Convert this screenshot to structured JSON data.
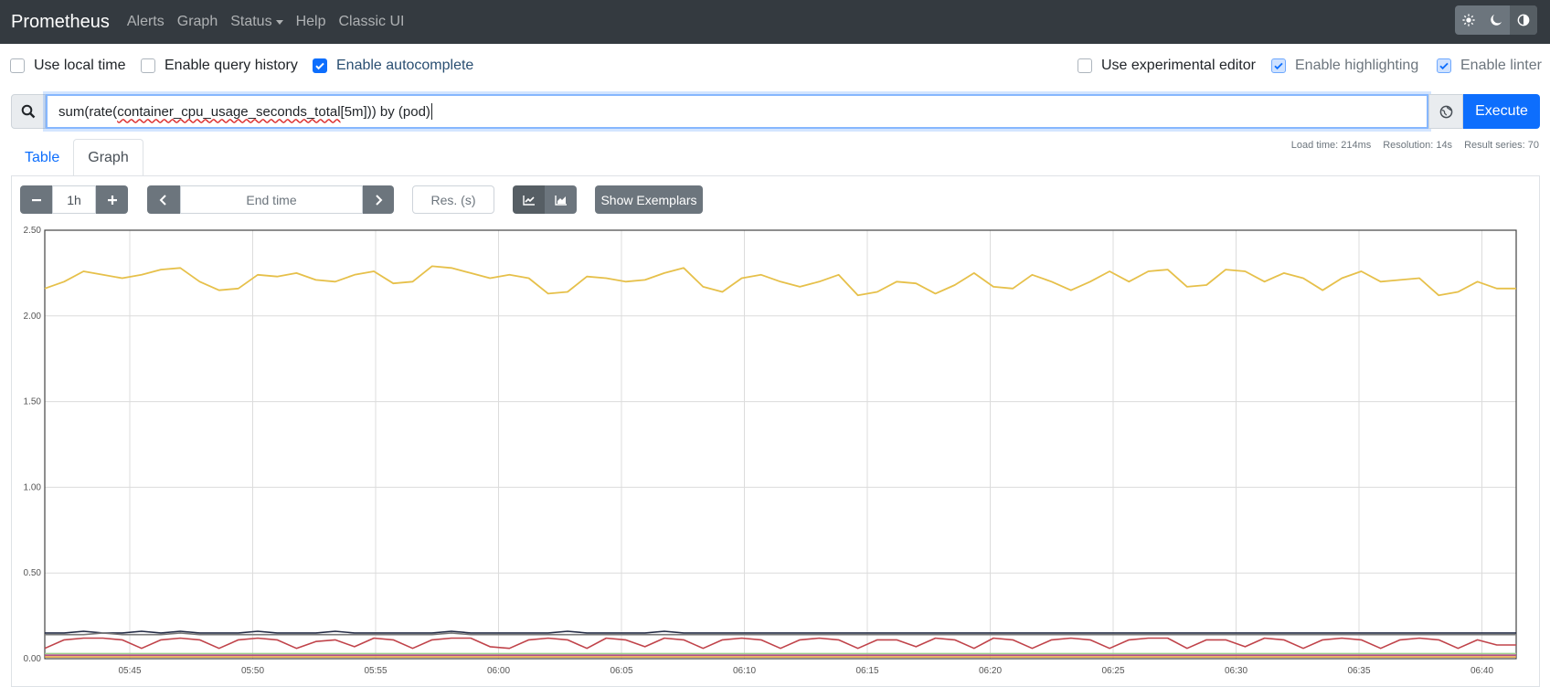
{
  "navbar": {
    "brand": "Prometheus",
    "links": [
      "Alerts",
      "Graph",
      "Status",
      "Help",
      "Classic UI"
    ],
    "theme_icons": [
      "sun-icon",
      "moon-icon",
      "contrast-icon"
    ]
  },
  "options": {
    "use_local_time": {
      "label": "Use local time",
      "checked": false
    },
    "enable_query_history": {
      "label": "Enable query history",
      "checked": false
    },
    "enable_autocomplete": {
      "label": "Enable autocomplete",
      "checked": true
    },
    "use_experimental_editor": {
      "label": "Use experimental editor",
      "checked": false
    },
    "enable_highlighting": {
      "label": "Enable highlighting",
      "checked": true
    },
    "enable_linter": {
      "label": "Enable linter",
      "checked": true
    }
  },
  "query": {
    "prefix": "sum(rate(",
    "metric": "container_cpu_usage_seconds_total",
    "suffix": "[5m])) by (pod)",
    "execute_label": "Execute"
  },
  "tabs": {
    "table": "Table",
    "graph": "Graph"
  },
  "stats": {
    "load_time": "Load time: 214ms",
    "resolution": "Resolution: 14s",
    "result_series": "Result series: 70"
  },
  "controls": {
    "range": "1h",
    "end_time_placeholder": "End time",
    "resolution_placeholder": "Res. (s)",
    "show_exemplars": "Show Exemplars"
  },
  "colors": {
    "accent": "#0d6efd",
    "navbar": "#343a40"
  },
  "chart_data": {
    "type": "line",
    "y_ticks": [
      "0.00",
      "0.50",
      "1.00",
      "1.50",
      "2.00",
      "2.50"
    ],
    "x_ticks": [
      "05:45",
      "05:50",
      "05:55",
      "06:00",
      "06:05",
      "06:10",
      "06:15",
      "06:20",
      "06:25",
      "06:30",
      "06:35",
      "06:40"
    ],
    "ylim": [
      0,
      2.5
    ],
    "grid": true,
    "series": [
      {
        "color": "#e6c04a",
        "values": [
          2.16,
          2.2,
          2.26,
          2.24,
          2.22,
          2.24,
          2.27,
          2.28,
          2.2,
          2.15,
          2.16,
          2.24,
          2.23,
          2.25,
          2.21,
          2.2,
          2.24,
          2.26,
          2.19,
          2.2,
          2.29,
          2.28,
          2.25,
          2.22,
          2.24,
          2.22,
          2.13,
          2.14,
          2.23,
          2.22,
          2.2,
          2.21,
          2.25,
          2.28,
          2.17,
          2.14,
          2.22,
          2.24,
          2.2,
          2.17,
          2.2,
          2.24,
          2.12,
          2.14,
          2.2,
          2.19,
          2.13,
          2.18,
          2.25,
          2.17,
          2.16,
          2.24,
          2.2,
          2.15,
          2.2,
          2.26,
          2.2,
          2.26,
          2.27,
          2.17,
          2.18,
          2.27,
          2.26,
          2.2,
          2.25,
          2.22,
          2.15,
          2.22,
          2.26,
          2.2,
          2.21,
          2.22,
          2.12,
          2.14,
          2.2,
          2.16,
          2.16
        ]
      },
      {
        "color": "#222a44",
        "values": [
          0.15,
          0.15,
          0.16,
          0.15,
          0.15,
          0.16,
          0.15,
          0.16,
          0.15,
          0.15,
          0.15,
          0.16,
          0.15,
          0.15,
          0.15,
          0.16,
          0.15,
          0.15,
          0.15,
          0.15,
          0.15,
          0.16,
          0.15,
          0.15,
          0.15,
          0.15,
          0.15,
          0.16,
          0.15,
          0.15,
          0.15,
          0.15,
          0.16,
          0.15,
          0.15,
          0.15,
          0.15,
          0.15,
          0.15,
          0.15,
          0.15,
          0.15,
          0.15,
          0.15,
          0.15,
          0.15,
          0.15,
          0.15,
          0.15,
          0.15,
          0.15,
          0.15,
          0.15,
          0.15,
          0.15,
          0.15,
          0.15,
          0.15,
          0.15,
          0.15,
          0.15,
          0.15,
          0.15,
          0.15,
          0.15,
          0.15,
          0.15,
          0.15,
          0.15,
          0.15,
          0.15,
          0.15,
          0.15,
          0.15,
          0.15,
          0.15,
          0.15
        ]
      },
      {
        "color": "#7a7a7a",
        "values": [
          0.14,
          0.14,
          0.14,
          0.15,
          0.14,
          0.14,
          0.14,
          0.15,
          0.14,
          0.14,
          0.14,
          0.14,
          0.14,
          0.14,
          0.14,
          0.14,
          0.14,
          0.14,
          0.14,
          0.14,
          0.14,
          0.15,
          0.14,
          0.14,
          0.14,
          0.14,
          0.14,
          0.14,
          0.14,
          0.14,
          0.14,
          0.14,
          0.14,
          0.14,
          0.14,
          0.14,
          0.14,
          0.14,
          0.14,
          0.14,
          0.14,
          0.14,
          0.14,
          0.14,
          0.14,
          0.14,
          0.14,
          0.14,
          0.14,
          0.14,
          0.14,
          0.14,
          0.14,
          0.14,
          0.14,
          0.14,
          0.14,
          0.14,
          0.14,
          0.14,
          0.14,
          0.14,
          0.14,
          0.14,
          0.14,
          0.14,
          0.14,
          0.14,
          0.14,
          0.14,
          0.14,
          0.14,
          0.14,
          0.14,
          0.14,
          0.14,
          0.14
        ]
      },
      {
        "color": "#c0434a",
        "values": [
          0.06,
          0.11,
          0.12,
          0.12,
          0.11,
          0.06,
          0.11,
          0.12,
          0.11,
          0.06,
          0.11,
          0.12,
          0.11,
          0.06,
          0.1,
          0.11,
          0.07,
          0.12,
          0.11,
          0.06,
          0.11,
          0.12,
          0.12,
          0.07,
          0.06,
          0.11,
          0.12,
          0.11,
          0.06,
          0.12,
          0.11,
          0.07,
          0.12,
          0.11,
          0.06,
          0.11,
          0.12,
          0.11,
          0.06,
          0.11,
          0.12,
          0.11,
          0.06,
          0.11,
          0.11,
          0.07,
          0.12,
          0.11,
          0.06,
          0.12,
          0.11,
          0.06,
          0.11,
          0.12,
          0.11,
          0.06,
          0.11,
          0.12,
          0.12,
          0.06,
          0.11,
          0.11,
          0.07,
          0.12,
          0.11,
          0.06,
          0.11,
          0.12,
          0.11,
          0.06,
          0.11,
          0.12,
          0.11,
          0.06,
          0.11,
          0.08,
          0.08
        ]
      },
      {
        "color": "#9ed08b",
        "values": [
          0.03,
          0.03,
          0.03,
          0.03,
          0.03,
          0.03,
          0.03,
          0.03,
          0.03,
          0.03,
          0.03,
          0.03,
          0.03,
          0.03,
          0.03,
          0.03,
          0.03,
          0.03,
          0.03,
          0.03,
          0.03,
          0.03,
          0.03,
          0.03,
          0.03,
          0.03,
          0.03,
          0.03,
          0.03,
          0.03,
          0.03,
          0.03,
          0.03,
          0.03,
          0.03,
          0.03,
          0.03,
          0.03,
          0.03,
          0.03,
          0.03,
          0.03,
          0.03,
          0.03,
          0.03,
          0.03,
          0.03,
          0.03,
          0.03,
          0.03,
          0.03,
          0.03,
          0.03,
          0.03,
          0.03,
          0.03,
          0.03,
          0.03,
          0.03,
          0.03,
          0.03,
          0.03,
          0.03,
          0.03,
          0.03,
          0.03,
          0.03,
          0.03,
          0.03,
          0.03,
          0.03,
          0.03,
          0.03,
          0.03,
          0.03,
          0.03,
          0.03
        ]
      },
      {
        "color": "#b34d88",
        "values": [
          0.02,
          0.02,
          0.02,
          0.02,
          0.02,
          0.02,
          0.02,
          0.02,
          0.02,
          0.02,
          0.02,
          0.02,
          0.02,
          0.02,
          0.02,
          0.02,
          0.02,
          0.02,
          0.02,
          0.02,
          0.02,
          0.02,
          0.02,
          0.02,
          0.02,
          0.02,
          0.02,
          0.02,
          0.02,
          0.02,
          0.02,
          0.02,
          0.02,
          0.02,
          0.02,
          0.02,
          0.02,
          0.02,
          0.02,
          0.02,
          0.02,
          0.02,
          0.02,
          0.02,
          0.02,
          0.02,
          0.02,
          0.02,
          0.02,
          0.02,
          0.02,
          0.02,
          0.02,
          0.02,
          0.02,
          0.02,
          0.02,
          0.02,
          0.02,
          0.02,
          0.02,
          0.02,
          0.02,
          0.02,
          0.02,
          0.02,
          0.02,
          0.02,
          0.02,
          0.02,
          0.02,
          0.02,
          0.02,
          0.02,
          0.02,
          0.02,
          0.02
        ]
      },
      {
        "color": "#e0a040",
        "values": [
          0.01,
          0.01,
          0.01,
          0.01,
          0.01,
          0.01,
          0.01,
          0.01,
          0.01,
          0.01,
          0.01,
          0.01,
          0.01,
          0.01,
          0.01,
          0.01,
          0.01,
          0.01,
          0.01,
          0.01,
          0.01,
          0.01,
          0.01,
          0.01,
          0.01,
          0.01,
          0.01,
          0.01,
          0.01,
          0.01,
          0.01,
          0.01,
          0.01,
          0.01,
          0.01,
          0.01,
          0.01,
          0.01,
          0.01,
          0.01,
          0.01,
          0.01,
          0.01,
          0.01,
          0.01,
          0.01,
          0.01,
          0.01,
          0.01,
          0.01,
          0.01,
          0.01,
          0.01,
          0.01,
          0.01,
          0.01,
          0.01,
          0.01,
          0.01,
          0.01,
          0.01,
          0.01,
          0.01,
          0.01,
          0.01,
          0.01,
          0.01,
          0.01,
          0.01,
          0.01,
          0.01,
          0.01,
          0.01,
          0.01,
          0.01,
          0.01,
          0.01
        ]
      }
    ]
  }
}
